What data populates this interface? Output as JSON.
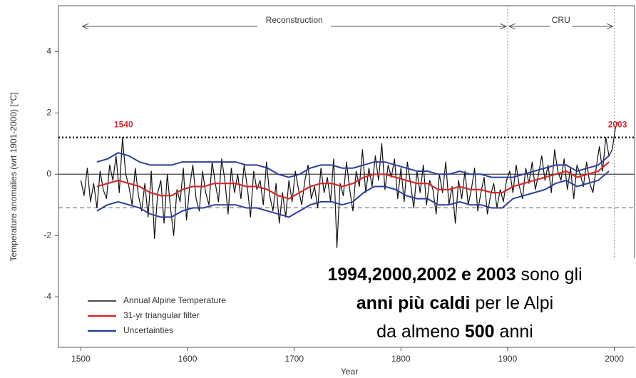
{
  "chart_data": {
    "type": "line",
    "xlabel": "Year",
    "ylabel": "Temperature anomalies (wrt 1901-2000) [°C]",
    "xlim": [
      1479,
      2019
    ],
    "ylim": [
      -5.65,
      5.5
    ],
    "xticks": [
      1500,
      1600,
      1700,
      1800,
      1900,
      2000
    ],
    "yticks": [
      -4,
      -2,
      0,
      2,
      4
    ],
    "series": [
      {
        "name": "Annual Alpine Temperature",
        "color": "#111111",
        "x": [
          1500,
          1503,
          1506,
          1509,
          1512,
          1515,
          1518,
          1521,
          1524,
          1527,
          1530,
          1533,
          1536,
          1539,
          1542,
          1545,
          1548,
          1551,
          1554,
          1557,
          1560,
          1563,
          1566,
          1569,
          1572,
          1575,
          1578,
          1581,
          1584,
          1587,
          1590,
          1593,
          1596,
          1599,
          1602,
          1605,
          1608,
          1611,
          1614,
          1617,
          1620,
          1623,
          1626,
          1629,
          1632,
          1635,
          1638,
          1641,
          1644,
          1647,
          1650,
          1653,
          1656,
          1659,
          1662,
          1665,
          1668,
          1671,
          1674,
          1677,
          1680,
          1683,
          1686,
          1689,
          1692,
          1695,
          1698,
          1701,
          1704,
          1707,
          1710,
          1713,
          1716,
          1719,
          1722,
          1725,
          1728,
          1731,
          1734,
          1737,
          1740,
          1743,
          1746,
          1749,
          1752,
          1755,
          1758,
          1761,
          1764,
          1767,
          1770,
          1773,
          1776,
          1779,
          1782,
          1785,
          1788,
          1791,
          1794,
          1797,
          1800,
          1803,
          1806,
          1809,
          1812,
          1815,
          1818,
          1821,
          1824,
          1827,
          1830,
          1833,
          1836,
          1839,
          1842,
          1845,
          1848,
          1851,
          1854,
          1857,
          1860,
          1863,
          1866,
          1869,
          1872,
          1875,
          1878,
          1881,
          1884,
          1887,
          1890,
          1893,
          1896,
          1899,
          1902,
          1905,
          1908,
          1911,
          1914,
          1917,
          1920,
          1923,
          1926,
          1929,
          1932,
          1935,
          1938,
          1941,
          1944,
          1947,
          1950,
          1953,
          1956,
          1959,
          1962,
          1965,
          1968,
          1971,
          1974,
          1977,
          1980,
          1983,
          1986,
          1989,
          1992,
          1995,
          1998,
          2001,
          2003
        ],
        "values": [
          -0.2,
          -0.7,
          0.2,
          -0.9,
          -0.3,
          -1.1,
          0.1,
          -0.5,
          -0.8,
          0.3,
          -0.2,
          0.6,
          -0.6,
          1.2,
          0.0,
          -0.4,
          -1.0,
          0.2,
          -0.7,
          -1.2,
          -0.3,
          -1.4,
          0.1,
          -2.1,
          -0.6,
          -0.2,
          -1.6,
          0.0,
          -1.1,
          -2.0,
          -0.5,
          -0.9,
          0.2,
          -1.5,
          -0.4,
          0.3,
          -0.8,
          -1.2,
          0.1,
          -0.6,
          -1.0,
          0.4,
          -0.3,
          -0.9,
          0.5,
          -0.2,
          -1.3,
          0.2,
          -0.6,
          0.0,
          -0.8,
          0.3,
          -0.4,
          -1.4,
          0.1,
          -0.5,
          -0.2,
          -1.0,
          0.4,
          -0.7,
          -1.2,
          -0.3,
          -1.6,
          -0.6,
          -1.4,
          -0.2,
          -0.9,
          0.1,
          -0.5,
          -1.0,
          -0.2,
          0.3,
          -0.8,
          -0.4,
          -1.1,
          0.2,
          -0.6,
          -0.1,
          -0.9,
          0.5,
          -2.4,
          -0.3,
          -0.7,
          0.4,
          -0.5,
          -1.2,
          0.1,
          -0.4,
          0.8,
          -0.6,
          0.2,
          -0.4,
          0.6,
          -0.2,
          1.0,
          -0.5,
          0.3,
          -0.1,
          0.5,
          -0.8,
          0.2,
          -0.9,
          0.4,
          -0.3,
          -1.1,
          0.1,
          -0.6,
          0.3,
          -1.0,
          -0.2,
          -0.5,
          -1.3,
          0.0,
          -0.6,
          0.4,
          -1.0,
          -0.4,
          -1.6,
          -0.2,
          -0.8,
          0.1,
          -1.0,
          -0.5,
          0.2,
          -1.2,
          -0.6,
          -0.1,
          -1.3,
          -0.7,
          -0.3,
          -1.1,
          -0.5,
          -0.9,
          -0.2,
          0.1,
          -0.6,
          0.3,
          -0.4,
          -0.8,
          0.2,
          -0.3,
          0.4,
          -0.5,
          0.0,
          0.6,
          -0.2,
          0.3,
          -0.6,
          0.8,
          0.1,
          -0.2,
          0.5,
          -0.5,
          0.2,
          -0.8,
          0.3,
          0.0,
          -0.4,
          0.4,
          -0.3,
          -0.6,
          0.2,
          0.9,
          0.1,
          1.2,
          0.6,
          0.8,
          1.5,
          1.7
        ]
      },
      {
        "name": "31-yr triangular filter",
        "color": "#d42a2a",
        "x": [
          1515,
          1525,
          1535,
          1545,
          1555,
          1565,
          1575,
          1585,
          1595,
          1605,
          1615,
          1625,
          1635,
          1645,
          1655,
          1665,
          1675,
          1685,
          1695,
          1705,
          1715,
          1725,
          1735,
          1745,
          1755,
          1765,
          1775,
          1785,
          1795,
          1805,
          1815,
          1825,
          1835,
          1845,
          1855,
          1865,
          1875,
          1885,
          1895,
          1905,
          1915,
          1925,
          1935,
          1945,
          1955,
          1965,
          1975,
          1985,
          1995
        ],
        "values": [
          -0.4,
          -0.3,
          -0.2,
          -0.3,
          -0.4,
          -0.6,
          -0.7,
          -0.7,
          -0.5,
          -0.4,
          -0.4,
          -0.3,
          -0.3,
          -0.3,
          -0.4,
          -0.4,
          -0.5,
          -0.7,
          -0.8,
          -0.6,
          -0.4,
          -0.3,
          -0.3,
          -0.4,
          -0.3,
          -0.1,
          0.0,
          0.0,
          -0.1,
          -0.2,
          -0.3,
          -0.3,
          -0.5,
          -0.5,
          -0.4,
          -0.5,
          -0.5,
          -0.6,
          -0.6,
          -0.4,
          -0.3,
          -0.2,
          -0.1,
          0.0,
          0.1,
          -0.1,
          0.0,
          0.1,
          0.4
        ]
      },
      {
        "name": "Uncertainties",
        "color": "#2e3f9a",
        "x": [
          1515,
          1525,
          1535,
          1545,
          1555,
          1565,
          1575,
          1585,
          1595,
          1605,
          1615,
          1625,
          1635,
          1645,
          1655,
          1665,
          1675,
          1685,
          1695,
          1705,
          1715,
          1725,
          1735,
          1745,
          1755,
          1765,
          1775,
          1785,
          1795,
          1805,
          1815,
          1825,
          1835,
          1845,
          1855,
          1865,
          1875,
          1885,
          1895,
          1905,
          1915,
          1925,
          1935,
          1945,
          1955,
          1965,
          1975,
          1985,
          1995
        ],
        "upper": [
          0.4,
          0.5,
          0.7,
          0.6,
          0.4,
          0.3,
          0.3,
          0.3,
          0.4,
          0.4,
          0.4,
          0.4,
          0.4,
          0.4,
          0.3,
          0.3,
          0.2,
          0.0,
          -0.1,
          0.0,
          0.2,
          0.3,
          0.3,
          0.2,
          0.2,
          0.3,
          0.4,
          0.4,
          0.3,
          0.2,
          0.1,
          0.1,
          0.0,
          0.0,
          0.1,
          0.0,
          0.0,
          -0.1,
          -0.1,
          -0.1,
          0.0,
          0.1,
          0.2,
          0.3,
          0.3,
          0.1,
          0.2,
          0.3,
          0.6
        ],
        "lower": [
          -1.2,
          -1.0,
          -0.9,
          -1.0,
          -1.1,
          -1.3,
          -1.4,
          -1.4,
          -1.2,
          -1.1,
          -1.1,
          -1.0,
          -1.0,
          -1.0,
          -1.1,
          -1.1,
          -1.2,
          -1.3,
          -1.4,
          -1.2,
          -1.0,
          -0.9,
          -0.9,
          -1.0,
          -0.9,
          -0.6,
          -0.4,
          -0.4,
          -0.5,
          -0.7,
          -0.8,
          -0.8,
          -1.0,
          -1.0,
          -0.9,
          -1.0,
          -1.0,
          -1.1,
          -1.1,
          -0.8,
          -0.7,
          -0.6,
          -0.5,
          -0.3,
          -0.2,
          -0.4,
          -0.3,
          -0.2,
          0.1
        ]
      }
    ],
    "zero_line": 0,
    "hlines": [
      {
        "value": 1.2,
        "style": "dotted"
      },
      {
        "value": -1.1,
        "style": "dashed"
      }
    ],
    "vlines": [
      1900,
      2000
    ],
    "periods": [
      {
        "label": "Reconstruction",
        "from": 1500,
        "to": 1900
      },
      {
        "label": "CRU",
        "from": 1900,
        "to": 2000
      }
    ],
    "annotations": [
      {
        "text": "1540",
        "x": 1540,
        "y": 1.6,
        "color": "#d42a2a"
      },
      {
        "text": "2003",
        "x": 2003,
        "y": 1.6,
        "color": "#d42a2a"
      }
    ],
    "legend": "lower left",
    "callout": [
      [
        {
          "text": "1994,2000,2002 e 2003",
          "bold": true
        },
        {
          "text": " sono gli",
          "bold": false
        }
      ],
      [
        {
          "text": "anni più caldi",
          "bold": true
        },
        {
          "text": " per le Alpi",
          "bold": false
        }
      ],
      [
        {
          "text": "da almeno ",
          "bold": false
        },
        {
          "text": "500",
          "bold": true
        },
        {
          "text": " anni",
          "bold": false
        }
      ]
    ]
  }
}
